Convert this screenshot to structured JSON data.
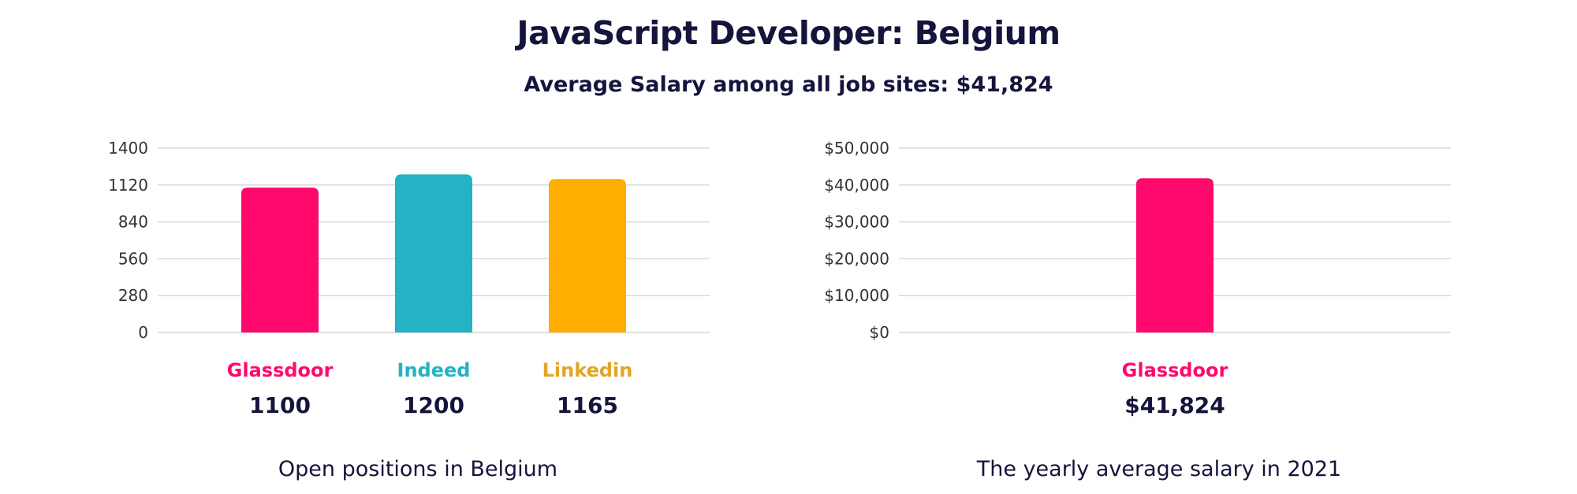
{
  "header": {
    "title": "JavaScript Developer: Belgium",
    "subtitle": "Average Salary among all job sites: $41,824"
  },
  "colors": {
    "glassdoor": "#ff0a6c",
    "indeed": "#24b2c4",
    "linkedin": "#ffad00",
    "linkedin_label": "#e2a52a",
    "text": "#14143c",
    "grid": "#d9d9d9"
  },
  "chart_data": [
    {
      "type": "bar",
      "title": "",
      "caption": "Open positions in Belgium",
      "categories": [
        "Glassdoor",
        "Indeed",
        "Linkedin"
      ],
      "values": [
        1100,
        1200,
        1165
      ],
      "value_labels": [
        "1100",
        "1200",
        "1165"
      ],
      "yticks": [
        "0",
        "280",
        "560",
        "840",
        "1120",
        "1400"
      ],
      "ylim": [
        0,
        1400
      ],
      "grid": true,
      "bar_colors": [
        "#ff0a6c",
        "#24b2c4",
        "#ffad00"
      ],
      "label_colors": [
        "#ff0a6c",
        "#24b2c4",
        "#e2a52a"
      ]
    },
    {
      "type": "bar",
      "title": "",
      "caption": "The yearly average salary in 2021",
      "categories": [
        "Glassdoor"
      ],
      "values": [
        41824
      ],
      "value_labels": [
        "$41,824"
      ],
      "yticks": [
        "$0",
        "$10,000",
        "$20,000",
        "$30,000",
        "$40,000",
        "$50,000"
      ],
      "ylim": [
        0,
        50000
      ],
      "grid": true,
      "bar_colors": [
        "#ff0a6c"
      ],
      "label_colors": [
        "#ff0a6c"
      ]
    }
  ]
}
